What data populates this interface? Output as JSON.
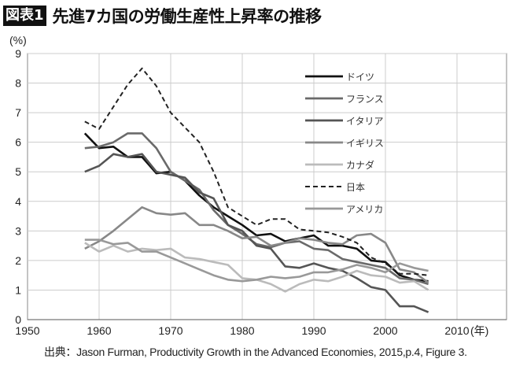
{
  "header": {
    "badge": "図表1",
    "title": "先進7カ国の労働生産性上昇率の推移"
  },
  "source": "出典：Jason Furman, Productivity Growth in the Advanced Economies, 2015,p.4, Figure 3.",
  "chart_data": {
    "type": "line",
    "title": "先進7カ国の労働生産性上昇率の推移",
    "ylabel": "(%)",
    "xlabel": "(年)",
    "xlim": [
      1950,
      2014
    ],
    "ylim": [
      0,
      9
    ],
    "xticks": [
      1950,
      1960,
      1970,
      1980,
      1990,
      2000,
      2010
    ],
    "yticks": [
      0,
      1,
      2,
      3,
      4,
      5,
      6,
      7,
      8,
      9
    ],
    "grid": true,
    "legend": "upper-center-right",
    "x": [
      1958,
      1960,
      1962,
      1964,
      1966,
      1968,
      1970,
      1972,
      1974,
      1976,
      1978,
      1980,
      1982,
      1984,
      1986,
      1988,
      1990,
      1992,
      1994,
      1996,
      1998,
      2000,
      2002,
      2004,
      2006
    ],
    "series": [
      {
        "name": "ドイツ",
        "color": "#111111",
        "dash": false,
        "values": [
          6.3,
          5.8,
          5.85,
          5.5,
          5.5,
          4.95,
          5.0,
          4.7,
          4.2,
          3.8,
          3.5,
          3.2,
          2.85,
          2.9,
          2.65,
          2.75,
          2.85,
          2.5,
          2.5,
          2.4,
          2.0,
          1.95,
          1.5,
          1.35,
          1.3
        ]
      },
      {
        "name": "フランス",
        "color": "#6a6a6a",
        "dash": false,
        "values": [
          5.8,
          5.85,
          6.0,
          6.3,
          6.3,
          5.8,
          5.0,
          4.7,
          4.4,
          3.7,
          3.2,
          2.9,
          2.55,
          2.45,
          2.6,
          2.65,
          2.4,
          2.35,
          2.05,
          1.95,
          1.85,
          1.75,
          1.4,
          1.35,
          1.2
        ]
      },
      {
        "name": "イタリア",
        "color": "#555555",
        "dash": false,
        "values": [
          5.0,
          5.2,
          5.6,
          5.5,
          5.6,
          5.0,
          4.9,
          4.8,
          4.3,
          4.1,
          3.2,
          3.0,
          2.5,
          2.4,
          1.8,
          1.75,
          1.9,
          1.75,
          1.65,
          1.4,
          1.1,
          1.0,
          0.45,
          0.45,
          0.25
        ]
      },
      {
        "name": "イギリス",
        "color": "#888888",
        "dash": false,
        "values": [
          2.4,
          2.65,
          3.0,
          3.4,
          3.8,
          3.6,
          3.55,
          3.6,
          3.2,
          3.2,
          3.0,
          2.75,
          2.8,
          2.5,
          2.6,
          2.75,
          2.7,
          2.6,
          2.55,
          2.85,
          2.9,
          2.6,
          1.7,
          1.6,
          1.25
        ]
      },
      {
        "name": "カナダ",
        "color": "#bbbbbb",
        "dash": false,
        "values": [
          2.6,
          2.3,
          2.5,
          2.3,
          2.4,
          2.35,
          2.4,
          2.1,
          2.05,
          1.95,
          1.85,
          1.4,
          1.35,
          1.2,
          0.95,
          1.2,
          1.35,
          1.3,
          1.45,
          1.65,
          1.5,
          1.45,
          1.25,
          1.3,
          1.0
        ]
      },
      {
        "name": "日本",
        "color": "#222222",
        "dash": true,
        "values": [
          6.7,
          6.45,
          7.2,
          7.95,
          8.5,
          7.9,
          7.0,
          6.5,
          6.0,
          5.0,
          3.8,
          3.5,
          3.2,
          3.4,
          3.4,
          3.05,
          3.0,
          2.95,
          2.8,
          2.6,
          2.1,
          1.9,
          1.55,
          1.55,
          1.5
        ]
      },
      {
        "name": "アメリカ",
        "color": "#999999",
        "dash": false,
        "values": [
          2.7,
          2.7,
          2.55,
          2.6,
          2.3,
          2.3,
          2.1,
          1.9,
          1.7,
          1.5,
          1.35,
          1.3,
          1.35,
          1.45,
          1.4,
          1.45,
          1.6,
          1.6,
          1.7,
          1.85,
          1.75,
          1.6,
          1.9,
          1.75,
          1.65
        ]
      }
    ]
  }
}
